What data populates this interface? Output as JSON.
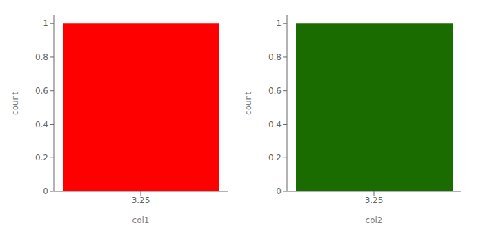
{
  "chart_data": [
    {
      "type": "bar",
      "x": [
        3.25
      ],
      "values": [
        1.0
      ],
      "color": "#ff0000",
      "xlabel": "col1",
      "ylabel": "count",
      "xlim": [
        2.75,
        3.75
      ],
      "xticks": [
        3.25
      ],
      "ylim": [
        0,
        1.05
      ],
      "yticks": [
        0,
        0.2,
        0.4,
        0.6,
        0.8,
        1
      ]
    },
    {
      "type": "bar",
      "x": [
        3.25
      ],
      "values": [
        1.0
      ],
      "color": "#1a6b00",
      "xlabel": "col2",
      "ylabel": "count",
      "xlim": [
        2.75,
        3.75
      ],
      "xticks": [
        3.25
      ],
      "ylim": [
        0,
        1.05
      ],
      "yticks": [
        0,
        0.2,
        0.4,
        0.6,
        0.8,
        1
      ]
    }
  ]
}
